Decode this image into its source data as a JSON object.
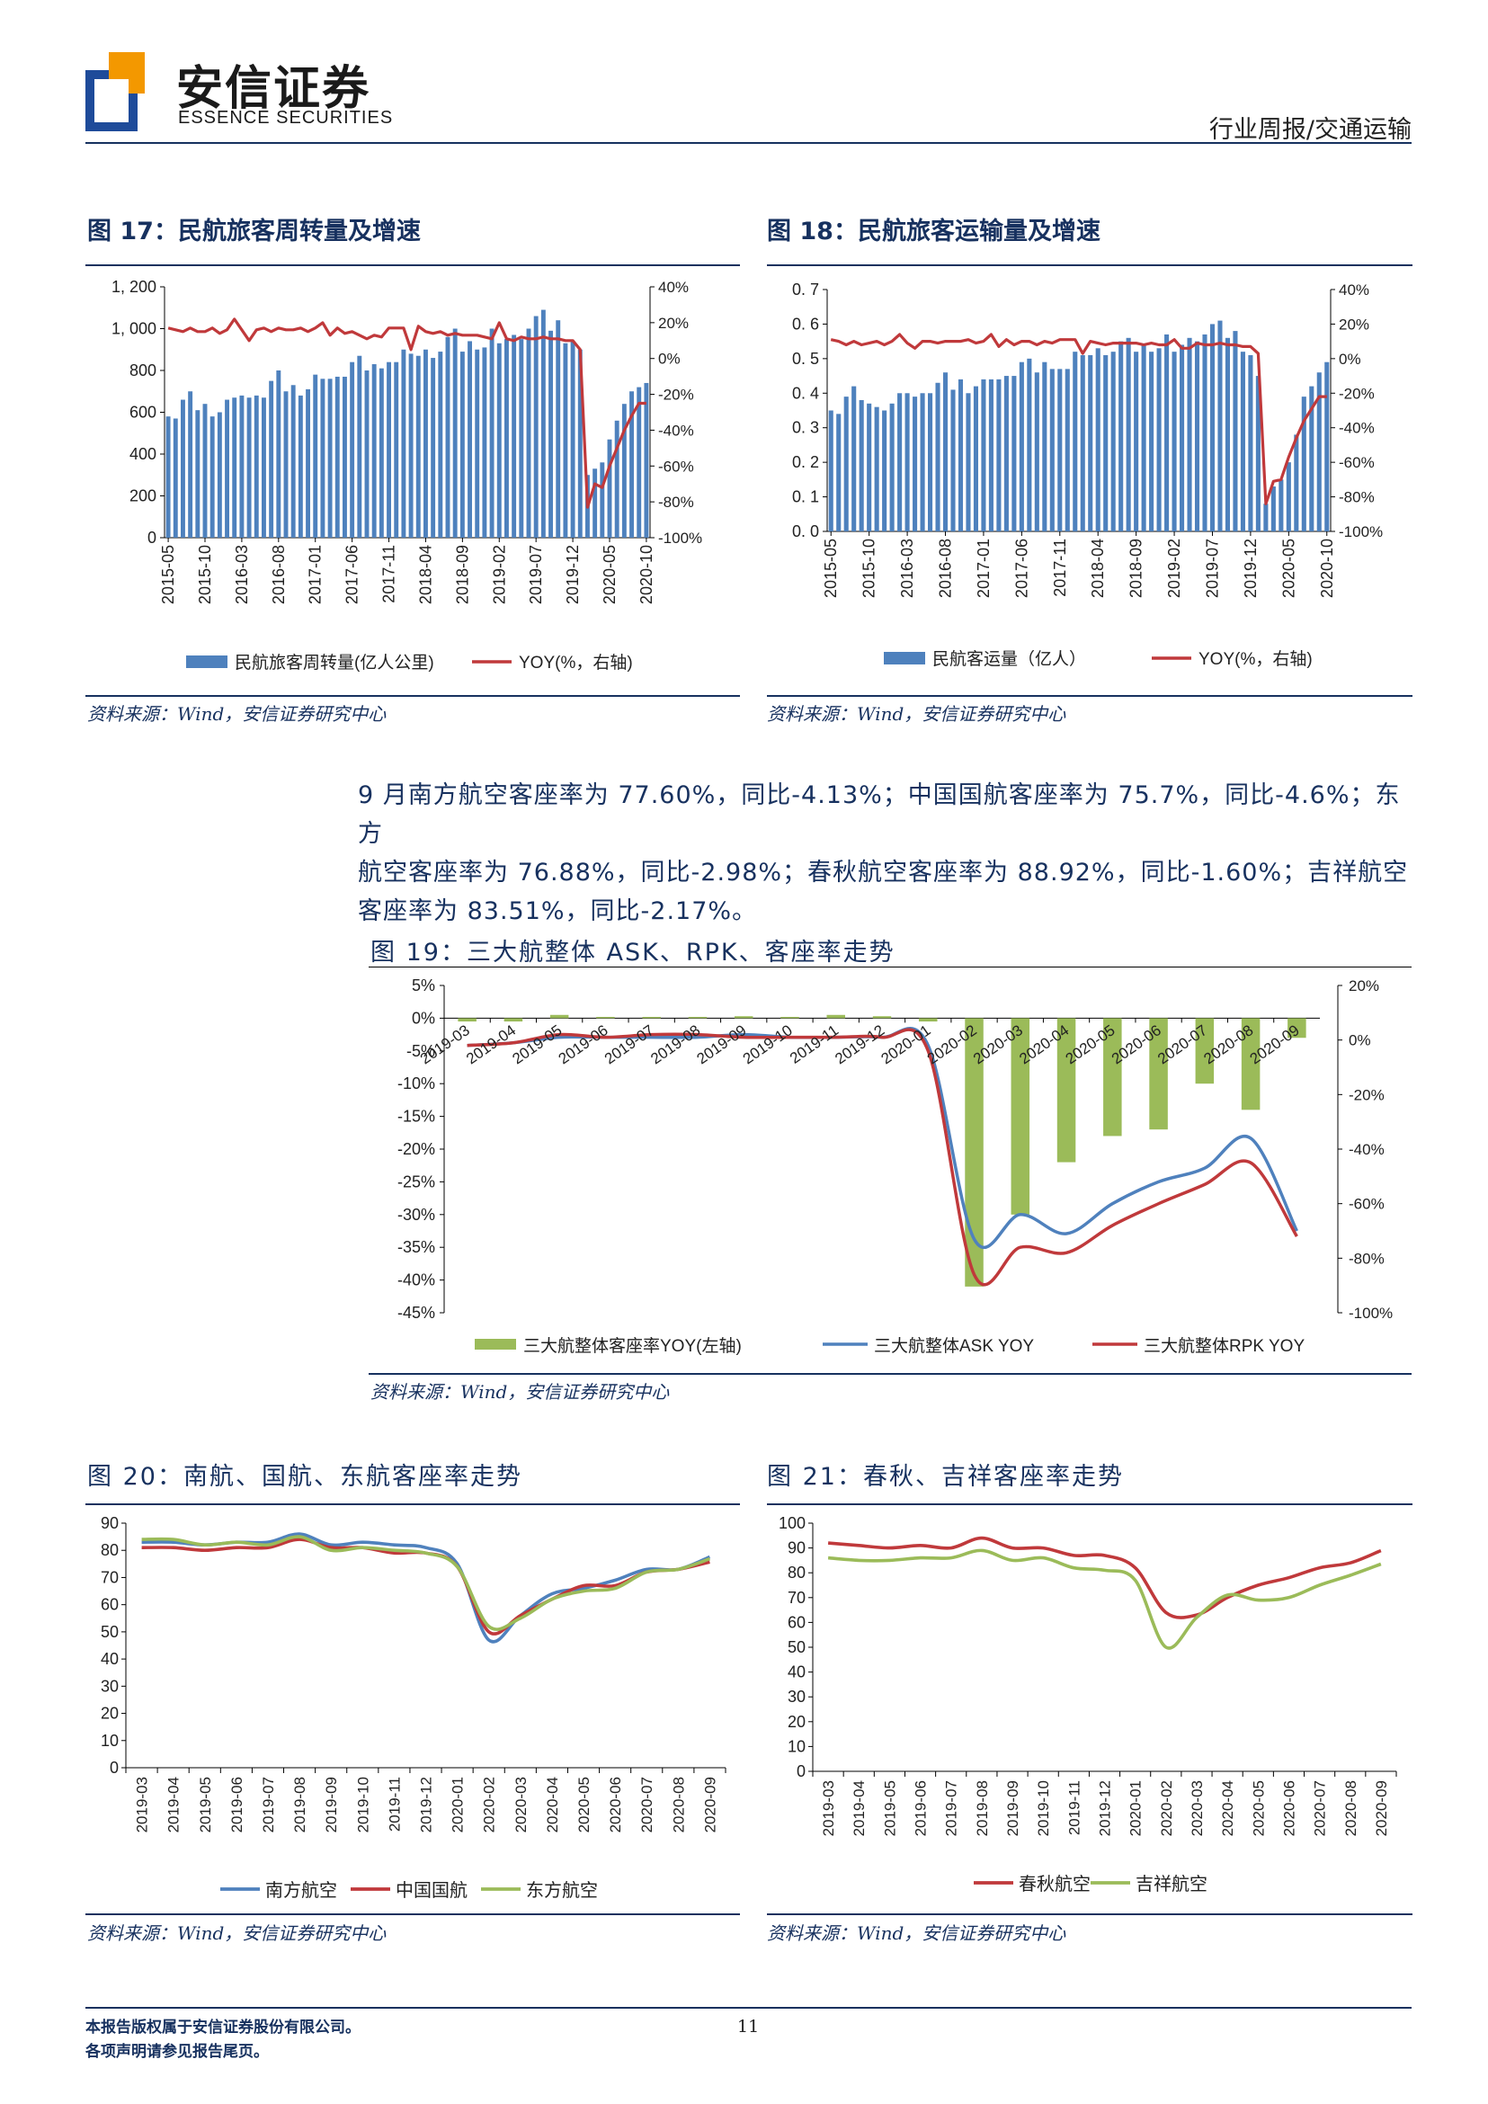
{
  "header": {
    "company_cn": "安信证券",
    "company_en": "ESSENCE SECURITIES",
    "report_type": "行业周报/交通运输"
  },
  "fig17": {
    "title": "图 17：民航旅客周转量及增速",
    "source": "资料来源：Wind，安信证券研究中心"
  },
  "fig18": {
    "title": "图 18：民航旅客运输量及增速",
    "source": "资料来源：Wind，安信证券研究中心"
  },
  "paragraph": {
    "line1": "9 月南方航空客座率为 77.60%，同比-4.13%；中国国航客座率为 75.7%，同比-4.6%；东方",
    "line2": "航空客座率为 76.88%，同比-2.98%；春秋航空客座率为 88.92%，同比-1.60%；吉祥航空",
    "line3": "客座率为 83.51%，同比-2.17%。"
  },
  "fig19": {
    "title": "图 19：三大航整体 ASK、RPK、客座率走势",
    "source": "资料来源：Wind，安信证券研究中心"
  },
  "fig20": {
    "title": "图 20：南航、国航、东航客座率走势",
    "source": "资料来源：Wind，安信证券研究中心"
  },
  "fig21": {
    "title": "图 21：春秋、吉祥客座率走势",
    "source": "资料来源：Wind，安信证券研究中心"
  },
  "footer": {
    "line1": "本报告版权属于安信证券股份有限公司。",
    "line2": "各项声明请参见报告尾页。",
    "page_number": "11"
  },
  "chart_data": [
    {
      "id": "fig17",
      "type": "bar",
      "x": [
        "2015-05",
        "2015-06",
        "2015-07",
        "2015-08",
        "2015-09",
        "2015-10",
        "2015-11",
        "2015-12",
        "2016-01",
        "2016-02",
        "2016-03",
        "2016-04",
        "2016-05",
        "2016-06",
        "2016-07",
        "2016-08",
        "2016-09",
        "2016-10",
        "2016-11",
        "2016-12",
        "2017-01",
        "2017-02",
        "2017-03",
        "2017-04",
        "2017-05",
        "2017-06",
        "2017-07",
        "2017-08",
        "2017-09",
        "2017-10",
        "2017-11",
        "2017-12",
        "2018-01",
        "2018-02",
        "2018-03",
        "2018-04",
        "2018-05",
        "2018-06",
        "2018-07",
        "2018-08",
        "2018-09",
        "2018-10",
        "2018-11",
        "2018-12",
        "2019-01",
        "2019-02",
        "2019-03",
        "2019-04",
        "2019-05",
        "2019-06",
        "2019-07",
        "2019-08",
        "2019-09",
        "2019-10",
        "2019-11",
        "2019-12",
        "2020-01",
        "2020-02",
        "2020-03",
        "2020-04",
        "2020-05",
        "2020-06",
        "2020-07",
        "2020-08",
        "2020-09",
        "2020-10"
      ],
      "xticks": [
        "2015-05",
        "2015-10",
        "2016-03",
        "2016-08",
        "2017-01",
        "2017-06",
        "2017-11",
        "2018-04",
        "2018-09",
        "2019-02",
        "2019-07",
        "2019-12",
        "2020-05",
        "2020-10"
      ],
      "series": [
        {
          "name": "民航旅客周转量(亿人公里)",
          "axis": "left",
          "kind": "bar",
          "values": [
            580,
            570,
            660,
            700,
            610,
            640,
            580,
            600,
            660,
            670,
            680,
            670,
            680,
            670,
            750,
            800,
            700,
            730,
            680,
            710,
            780,
            760,
            760,
            770,
            770,
            840,
            870,
            800,
            830,
            810,
            840,
            840,
            900,
            880,
            870,
            900,
            860,
            890,
            960,
            1000,
            890,
            940,
            900,
            910,
            1000,
            930,
            950,
            970,
            950,
            1000,
            1060,
            1090,
            990,
            1040,
            930,
            940,
            900,
            300,
            330,
            360,
            470,
            560,
            640,
            700,
            720,
            740
          ]
        },
        {
          "name": "YOY(%，右轴)",
          "axis": "right",
          "kind": "line",
          "values": [
            17,
            16,
            15,
            17,
            15,
            15,
            17,
            14,
            16,
            22,
            16,
            10,
            16,
            17,
            15,
            17,
            16,
            16,
            17,
            15,
            17,
            20,
            13,
            17,
            14,
            15,
            13,
            11,
            13,
            12,
            17,
            17,
            17,
            5,
            18,
            15,
            14,
            15,
            13,
            14,
            13,
            13,
            13,
            12,
            11,
            20,
            11,
            10,
            12,
            11,
            11,
            12,
            11,
            11,
            10,
            10,
            5,
            -83,
            -70,
            -72,
            -60,
            -50,
            -40,
            -32,
            -25,
            -25
          ]
        }
      ],
      "ylim_left": [
        0,
        1200
      ],
      "yticks_left": [
        "0",
        "200",
        "400",
        "600",
        "800",
        "1, 000",
        "1, 200"
      ],
      "ylim_right": [
        -100,
        40
      ],
      "yticks_right": [
        "-100%",
        "-80%",
        "-60%",
        "-40%",
        "-20%",
        "0%",
        "20%",
        "40%"
      ],
      "legend": "bottom"
    },
    {
      "id": "fig18",
      "type": "bar",
      "x": [
        "2015-05",
        "2015-06",
        "2015-07",
        "2015-08",
        "2015-09",
        "2015-10",
        "2015-11",
        "2015-12",
        "2016-01",
        "2016-02",
        "2016-03",
        "2016-04",
        "2016-05",
        "2016-06",
        "2016-07",
        "2016-08",
        "2016-09",
        "2016-10",
        "2016-11",
        "2016-12",
        "2017-01",
        "2017-02",
        "2017-03",
        "2017-04",
        "2017-05",
        "2017-06",
        "2017-07",
        "2017-08",
        "2017-09",
        "2017-10",
        "2017-11",
        "2017-12",
        "2018-01",
        "2018-02",
        "2018-03",
        "2018-04",
        "2018-05",
        "2018-06",
        "2018-07",
        "2018-08",
        "2018-09",
        "2018-10",
        "2018-11",
        "2018-12",
        "2019-01",
        "2019-02",
        "2019-03",
        "2019-04",
        "2019-05",
        "2019-06",
        "2019-07",
        "2019-08",
        "2019-09",
        "2019-10",
        "2019-11",
        "2019-12",
        "2020-01",
        "2020-02",
        "2020-03",
        "2020-04",
        "2020-05",
        "2020-06",
        "2020-07",
        "2020-08",
        "2020-09",
        "2020-10"
      ],
      "xticks": [
        "2015-05",
        "2015-10",
        "2016-03",
        "2016-08",
        "2017-01",
        "2017-06",
        "2017-11",
        "2018-04",
        "2018-09",
        "2019-02",
        "2019-07",
        "2019-12",
        "2020-05",
        "2020-10"
      ],
      "series": [
        {
          "name": "民航客运量（亿人）",
          "axis": "left",
          "kind": "bar",
          "values": [
            0.35,
            0.34,
            0.39,
            0.42,
            0.38,
            0.37,
            0.36,
            0.35,
            0.37,
            0.4,
            0.4,
            0.39,
            0.4,
            0.4,
            0.43,
            0.46,
            0.41,
            0.44,
            0.4,
            0.42,
            0.44,
            0.44,
            0.44,
            0.45,
            0.45,
            0.49,
            0.5,
            0.46,
            0.49,
            0.47,
            0.47,
            0.47,
            0.52,
            0.51,
            0.51,
            0.53,
            0.51,
            0.52,
            0.55,
            0.56,
            0.52,
            0.54,
            0.52,
            0.53,
            0.57,
            0.52,
            0.54,
            0.56,
            0.55,
            0.57,
            0.6,
            0.61,
            0.56,
            0.58,
            0.52,
            0.51,
            0.45,
            0.08,
            0.13,
            0.15,
            0.2,
            0.28,
            0.39,
            0.42,
            0.46,
            0.49
          ]
        },
        {
          "name": "YOY(%，右轴)",
          "axis": "right",
          "kind": "line",
          "values": [
            11,
            10,
            8,
            10,
            8,
            9,
            10,
            8,
            10,
            14,
            9,
            6,
            10,
            10,
            9,
            10,
            10,
            10,
            11,
            9,
            10,
            14,
            7,
            11,
            8,
            10,
            10,
            8,
            10,
            9,
            11,
            11,
            11,
            3,
            10,
            9,
            8,
            9,
            9,
            9,
            9,
            8,
            9,
            8,
            8,
            11,
            6,
            6,
            9,
            8,
            8,
            9,
            8,
            8,
            7,
            7,
            3,
            -84,
            -71,
            -70,
            -57,
            -46,
            -36,
            -29,
            -22,
            -22
          ]
        }
      ],
      "ylim_left": [
        0,
        0.7
      ],
      "yticks_left": [
        "0. 0",
        "0. 1",
        "0. 2",
        "0. 3",
        "0. 4",
        "0. 5",
        "0. 6",
        "0. 7"
      ],
      "ylim_right": [
        -100,
        40
      ],
      "yticks_right": [
        "-100%",
        "-80%",
        "-60%",
        "-40%",
        "-20%",
        "0%",
        "20%",
        "40%"
      ],
      "legend": "bottom"
    },
    {
      "id": "fig19",
      "type": "bar",
      "categories": [
        "2019-03",
        "2019-04",
        "2019-05",
        "2019-06",
        "2019-07",
        "2019-08",
        "2019-09",
        "2019-10",
        "2019-11",
        "2019-12",
        "2020-01",
        "2020-02",
        "2020-03",
        "2020-04",
        "2020-05",
        "2020-06",
        "2020-07",
        "2020-08",
        "2020-09"
      ],
      "series": [
        {
          "name": "三大航整体客座率YOY(左轴)",
          "axis": "left",
          "kind": "bar",
          "values": [
            -0.5,
            -0.5,
            0.5,
            0.2,
            0.2,
            0.2,
            0.3,
            0.2,
            0.5,
            0.3,
            -0.5,
            -41,
            -30,
            -22,
            -18,
            -17,
            -10,
            -14,
            -3
          ]
        },
        {
          "name": "三大航整体ASK  YOY",
          "axis": "right",
          "kind": "line",
          "values": [
            -2,
            -1,
            1,
            1,
            1,
            1,
            2,
            1,
            1,
            1,
            -2,
            -73,
            -64,
            -71,
            -60,
            -52,
            -47,
            -36,
            -70
          ]
        },
        {
          "name": "三大航整体RPK  YOY",
          "axis": "right",
          "kind": "line",
          "values": [
            -2,
            -1,
            2,
            1,
            2,
            2,
            1,
            1,
            1,
            1,
            -4,
            -86,
            -76,
            -78,
            -68,
            -60,
            -53,
            -45,
            -72
          ]
        }
      ],
      "ylim_left": [
        -45,
        5
      ],
      "yticks_left": [
        "-45%",
        "-40%",
        "-35%",
        "-30%",
        "-25%",
        "-20%",
        "-15%",
        "-10%",
        "-5%",
        "0%",
        "5%"
      ],
      "ylim_right": [
        -100,
        20
      ],
      "yticks_right": [
        "-100%",
        "-80%",
        "-60%",
        "-40%",
        "-20%",
        "0%",
        "20%"
      ],
      "legend": "bottom"
    },
    {
      "id": "fig20",
      "type": "line",
      "categories": [
        "2019-03",
        "2019-04",
        "2019-05",
        "2019-06",
        "2019-07",
        "2019-08",
        "2019-09",
        "2019-10",
        "2019-11",
        "2019-12",
        "2020-01",
        "2020-02",
        "2020-03",
        "2020-04",
        "2020-05",
        "2020-06",
        "2020-07",
        "2020-08",
        "2020-09"
      ],
      "series": [
        {
          "name": "南方航空",
          "values": [
            83,
            83,
            82,
            83,
            83,
            86,
            82,
            83,
            82,
            81,
            75,
            47,
            56,
            64,
            66,
            69,
            73,
            73,
            77.6
          ]
        },
        {
          "name": "中国国航",
          "values": [
            81,
            81,
            80,
            81,
            81,
            84,
            81,
            81,
            79,
            79,
            74,
            50,
            56,
            62,
            67,
            67,
            72,
            73,
            75.7
          ]
        },
        {
          "name": "东方航空",
          "values": [
            84,
            84,
            82,
            83,
            82,
            85,
            80,
            81,
            80,
            79,
            74,
            52,
            55,
            62,
            65,
            66,
            72,
            73,
            76.88
          ]
        }
      ],
      "ylim": [
        0,
        90
      ],
      "yticks": [
        "0",
        "10",
        "20",
        "30",
        "40",
        "50",
        "60",
        "70",
        "80",
        "90"
      ],
      "legend": "bottom"
    },
    {
      "id": "fig21",
      "type": "line",
      "categories": [
        "2019-03",
        "2019-04",
        "2019-05",
        "2019-06",
        "2019-07",
        "2019-08",
        "2019-09",
        "2019-10",
        "2019-11",
        "2019-12",
        "2020-01",
        "2020-02",
        "2020-03",
        "2020-04",
        "2020-05",
        "2020-06",
        "2020-07",
        "2020-08",
        "2020-09"
      ],
      "series": [
        {
          "name": "春秋航空",
          "values": [
            92,
            91,
            90,
            91,
            90,
            94,
            90,
            90,
            87,
            87,
            82,
            64,
            63,
            70,
            75,
            78,
            82,
            84,
            88.92
          ]
        },
        {
          "name": "吉祥航空",
          "values": [
            86,
            85,
            85,
            86,
            86,
            89,
            85,
            86,
            82,
            81,
            77,
            50,
            62,
            71,
            69,
            70,
            75,
            79,
            83.51
          ]
        }
      ],
      "ylim": [
        0,
        100
      ],
      "yticks": [
        "0",
        "10",
        "20",
        "30",
        "40",
        "50",
        "60",
        "70",
        "80",
        "90",
        "100"
      ],
      "legend": "bottom"
    }
  ],
  "colors": {
    "navy": "#17315f",
    "bar_blue": "#4e81bd",
    "line_red": "#c0393b",
    "bar_green": "#9bbb59",
    "line_blue": "#4f81bd",
    "logo_orange": "#f39800",
    "logo_blue": "#1e4b9a"
  }
}
